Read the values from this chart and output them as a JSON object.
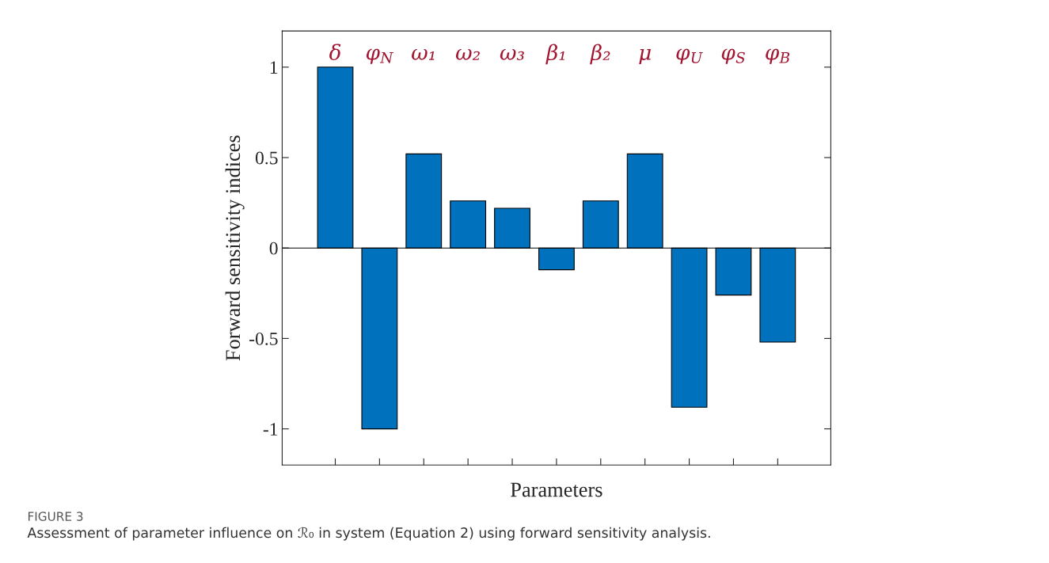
{
  "chart_data": {
    "type": "bar",
    "xlabel": "Parameters",
    "ylabel": "Forward sensitivity indices",
    "categories": [
      "δ",
      "φ$_{N}$",
      "ω₁",
      "ω₂",
      "ω₃",
      "β₁",
      "β₂",
      "μ",
      "φ$_{U}$",
      "φ$_{S}$",
      "φ$_{B}$"
    ],
    "values": [
      1,
      -1,
      0.52,
      0.26,
      0.22,
      -0.12,
      0.26,
      0.52,
      -0.88,
      -0.26,
      -0.52
    ],
    "color": "#0072bd",
    "ylim": [
      -1.2,
      1.2
    ],
    "yticks": [
      {
        "value": -1,
        "label": "-1"
      },
      {
        "value": -0.5,
        "label": "-0.5"
      },
      0,
      0.5,
      1
    ],
    "ref_lines": [
      {
        "axis": "y",
        "value": 0,
        "color": "#000000"
      }
    ],
    "grid": false,
    "annotations": [
      "FIGURE 3",
      "Assessment of parameter influence on ℛ₀ in system (Equation 2) using forward sensitivity analysis."
    ]
  }
}
